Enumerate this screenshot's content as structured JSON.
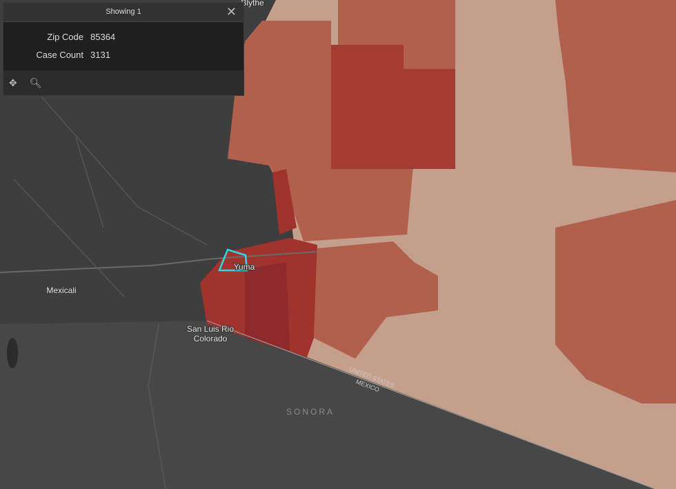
{
  "popup": {
    "title": "Showing 1",
    "fields": [
      {
        "label": "Zip Code",
        "value": 85364
      },
      {
        "label": "Case Count",
        "value": 3131
      }
    ]
  },
  "map_labels": {
    "places": [
      "Blythe",
      "Yuma",
      "Mexicali",
      "San Luis Rio",
      "Colorado",
      "SONORA"
    ],
    "border": [
      "UNITED STATES",
      "MEXICO"
    ]
  }
}
